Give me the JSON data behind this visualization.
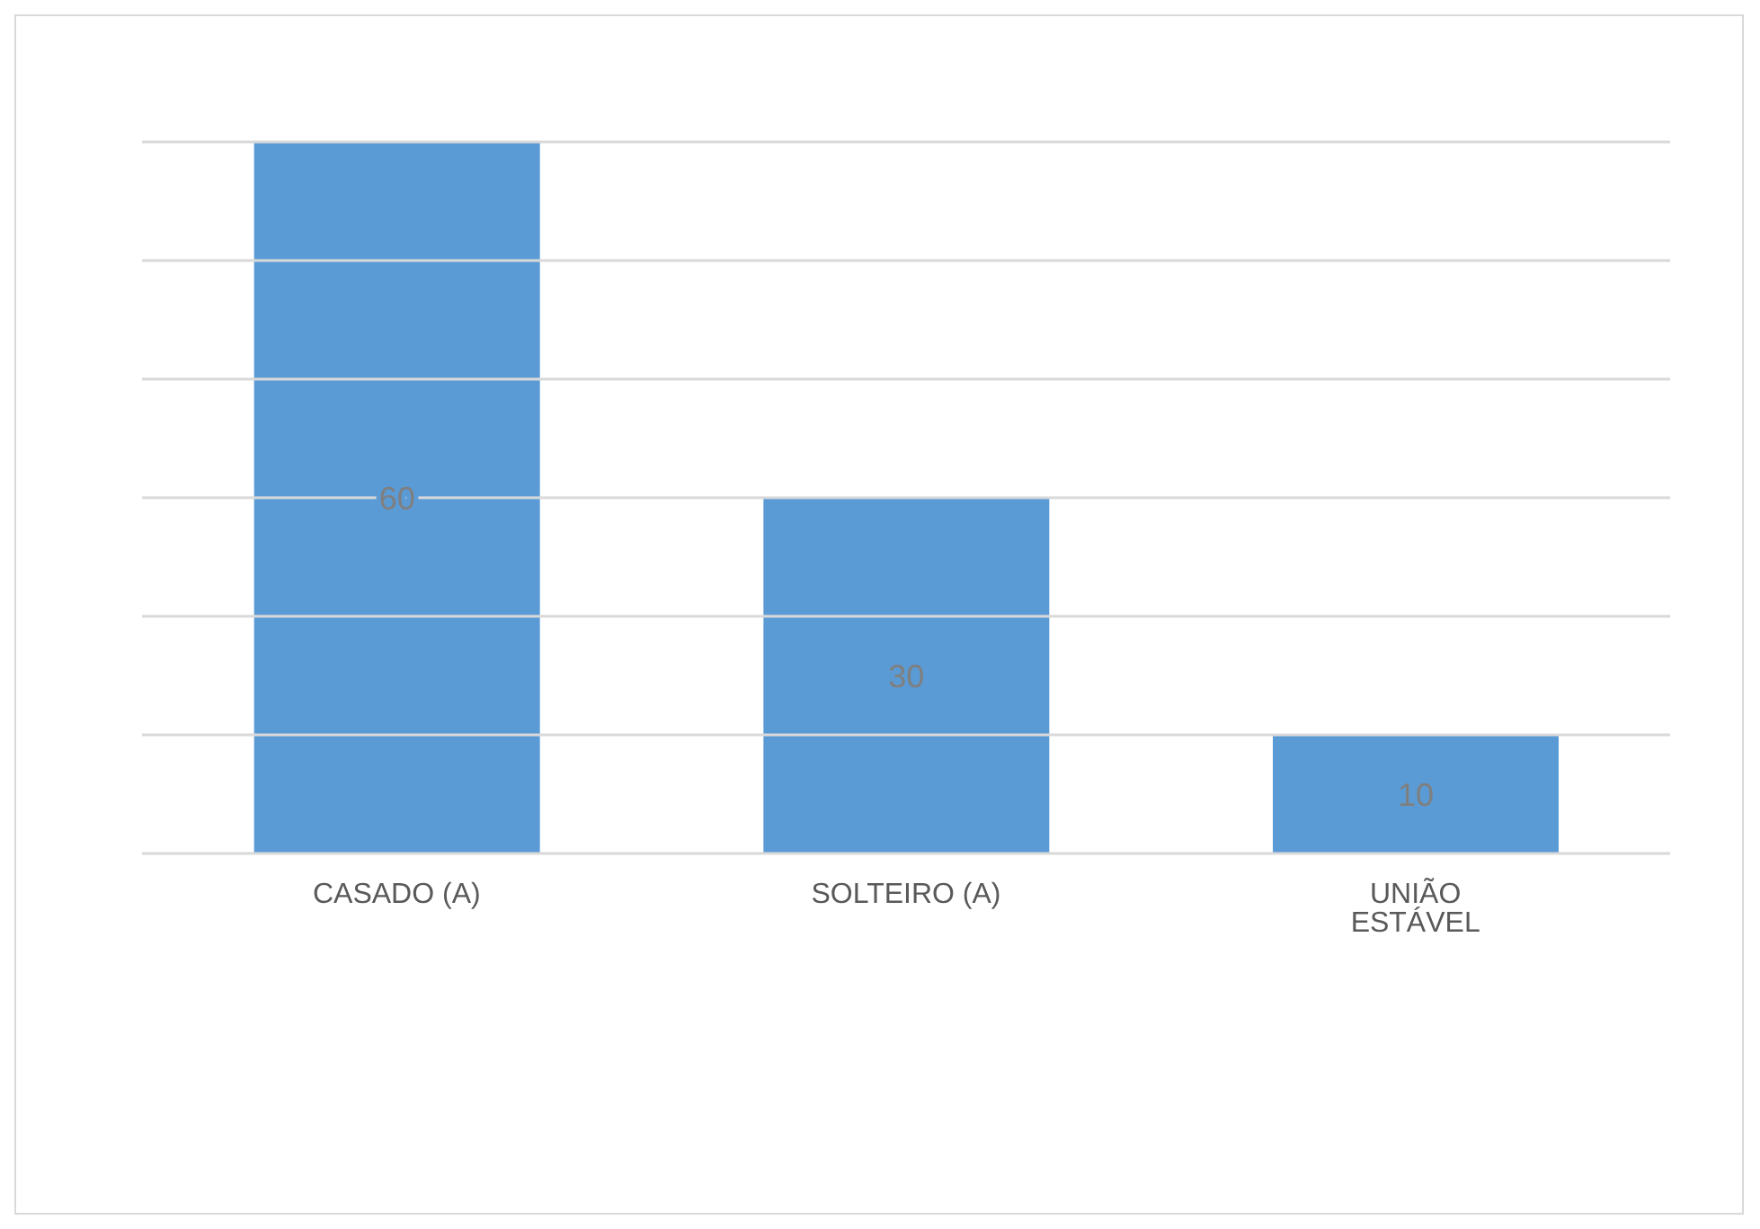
{
  "chart_data": {
    "type": "bar",
    "categories": [
      "CASADO (A)",
      "SOLTEIRO (A)",
      "UNIÃO ESTÁVEL"
    ],
    "values": [
      60,
      30,
      10
    ],
    "color": "#5b9bd5",
    "data_labels": true,
    "ylim": [
      0,
      60
    ],
    "yticks": [
      {
        "value": 0,
        "label": null
      },
      {
        "value": 10,
        "label": null
      },
      {
        "value": 20,
        "label": null
      },
      {
        "value": 30,
        "label": null
      },
      {
        "value": 40,
        "label": null
      },
      {
        "value": 50,
        "label": null
      },
      {
        "value": 60,
        "label": null
      }
    ],
    "grid": "y",
    "tick_labels": "x"
  }
}
